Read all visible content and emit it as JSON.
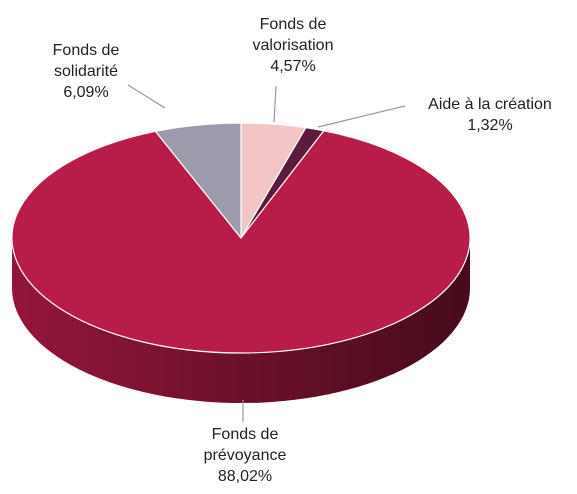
{
  "chart_data": {
    "type": "pie",
    "categories": [
      "Fonds de valorisation",
      "Aide à la création",
      "Fonds de prévoyance",
      "Fonds de solidarité"
    ],
    "values": [
      4.57,
      1.32,
      88.02,
      6.09
    ],
    "value_labels": [
      "4,57%",
      "1,32%",
      "88,02%",
      "6,09%"
    ],
    "colors": [
      "#f2c6c6",
      "#5c1a3c",
      "#b81c48",
      "#9c9aab"
    ]
  }
}
